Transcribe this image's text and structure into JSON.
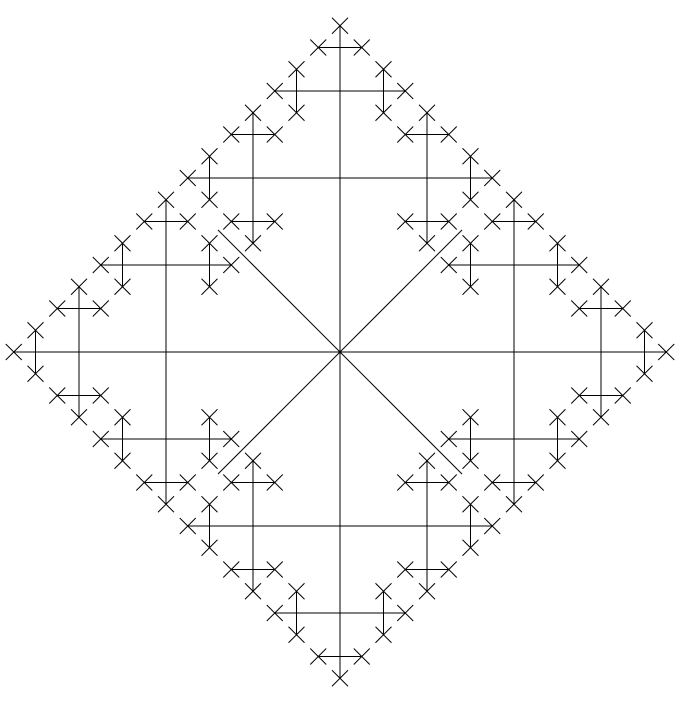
{
  "figure": {
    "subject": "fractal-cross-pattern",
    "line_color": "#000000",
    "background_color": "#ffffff",
    "recursion_depth": 4,
    "branch_directions": [
      "up",
      "down",
      "left",
      "right"
    ],
    "tips": "x-marks"
  }
}
